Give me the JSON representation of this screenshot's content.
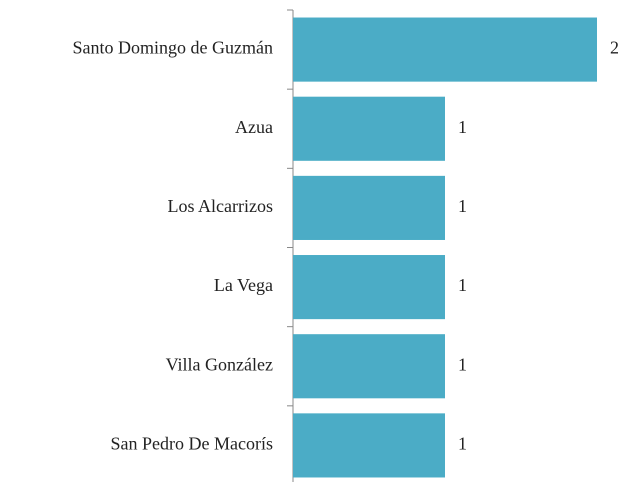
{
  "chart_data": {
    "type": "barh",
    "categories": [
      "Santo Domingo de Guzmán",
      "Azua",
      "Los Alcarrizos",
      "La Vega",
      "Villa González",
      "San Pedro De Macorís"
    ],
    "values": [
      2,
      1,
      1,
      1,
      1,
      1
    ],
    "color": "#4bacc6"
  }
}
